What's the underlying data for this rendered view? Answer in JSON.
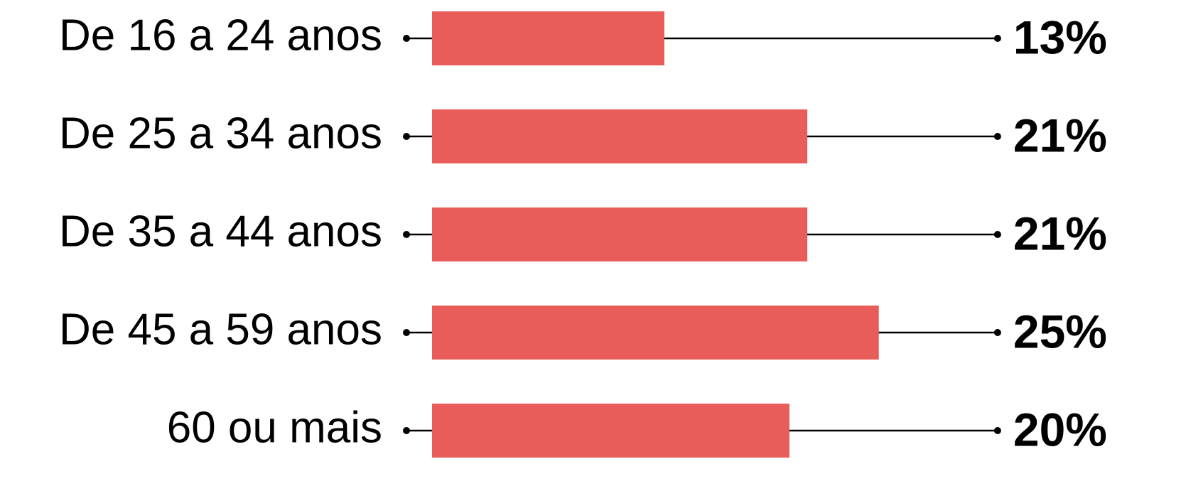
{
  "chart_data": {
    "type": "bar",
    "orientation": "horizontal",
    "categories": [
      "De 16 a 24 anos",
      "De 25 a 34 anos",
      "De 35 a 44 anos",
      "De 45 a 59 anos",
      "60 ou mais"
    ],
    "values": [
      13,
      21,
      21,
      25,
      20
    ],
    "value_labels": [
      "13%",
      "21%",
      "21%",
      "25%",
      "20%"
    ],
    "color": "#e85d5a"
  }
}
